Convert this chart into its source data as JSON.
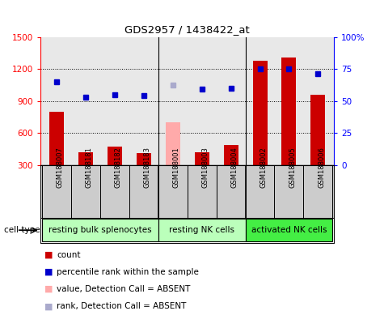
{
  "title": "GDS2957 / 1438422_at",
  "samples": [
    "GSM188007",
    "GSM188181",
    "GSM188182",
    "GSM188183",
    "GSM188001",
    "GSM188003",
    "GSM188004",
    "GSM188002",
    "GSM188005",
    "GSM188006"
  ],
  "count_values": [
    800,
    420,
    470,
    410,
    null,
    420,
    490,
    1280,
    1310,
    960
  ],
  "count_absent": [
    null,
    null,
    null,
    null,
    700,
    null,
    null,
    null,
    null,
    null
  ],
  "rank_values": [
    1080,
    940,
    960,
    950,
    null,
    1010,
    1020,
    1200,
    1200,
    1160
  ],
  "rank_absent": [
    null,
    null,
    null,
    null,
    1050,
    null,
    null,
    null,
    null,
    null
  ],
  "ylim_left": [
    300,
    1500
  ],
  "ylim_right": [
    0,
    100
  ],
  "yticks_left": [
    300,
    600,
    900,
    1200,
    1500
  ],
  "yticks_right": [
    0,
    25,
    50,
    75,
    100
  ],
  "yticklabels_right": [
    "0",
    "25",
    "50",
    "75",
    "100%"
  ],
  "grid_values": [
    600,
    900,
    1200
  ],
  "cell_groups": [
    {
      "label": "resting bulk splenocytes",
      "start": -0.5,
      "end": 3.5,
      "color": "#bbffbb"
    },
    {
      "label": "resting NK cells",
      "start": 3.5,
      "end": 6.5,
      "color": "#bbffbb"
    },
    {
      "label": "activated NK cells",
      "start": 6.5,
      "end": 9.5,
      "color": "#44ee44"
    }
  ],
  "bar_color_present": "#cc0000",
  "bar_color_absent": "#ffaaaa",
  "dot_color_present": "#0000cc",
  "dot_color_absent": "#aaaacc",
  "bar_width": 0.5,
  "plot_bg_color": "#e8e8e8",
  "label_bg_color": "#cccccc",
  "sep_color": "#888888",
  "xlim": [
    -0.55,
    9.55
  ],
  "legend_items": [
    {
      "color": "#cc0000",
      "label": "count"
    },
    {
      "color": "#0000cc",
      "label": "percentile rank within the sample"
    },
    {
      "color": "#ffaaaa",
      "label": "value, Detection Call = ABSENT"
    },
    {
      "color": "#aaaacc",
      "label": "rank, Detection Call = ABSENT"
    }
  ]
}
